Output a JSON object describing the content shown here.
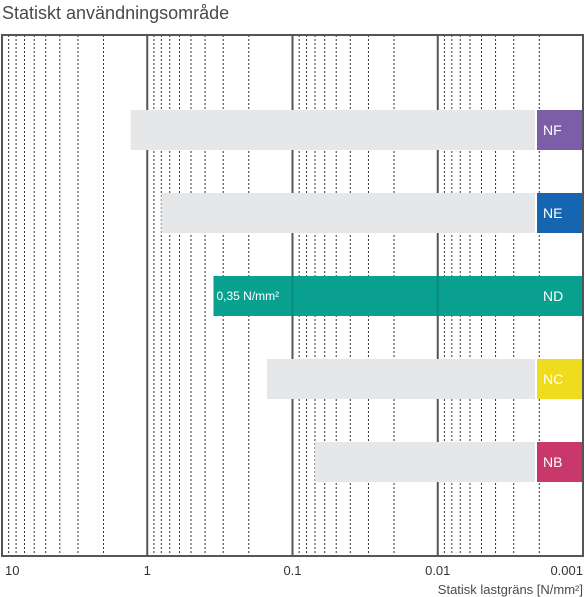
{
  "chart_data": {
    "type": "bar",
    "title": "Statiskt användningsområde",
    "xlabel": "Statisk lastgräns [N/mm²]",
    "x_scale": "log",
    "x_reversed": true,
    "xlim": [
      10,
      0.001
    ],
    "x_ticks": [
      {
        "value": 10,
        "label": "10"
      },
      {
        "value": 1,
        "label": "1"
      },
      {
        "value": 0.1,
        "label": "0.1"
      },
      {
        "value": 0.01,
        "label": "0.01"
      },
      {
        "value": 0.001,
        "label": "0.001"
      }
    ],
    "grid": true,
    "categories": [
      "NF",
      "NE",
      "ND",
      "NC",
      "NB"
    ],
    "ranges": [
      {
        "category": "NF",
        "from": 1.3,
        "to": 0.0018,
        "highlighted": false,
        "label_color": "#7b5ea7"
      },
      {
        "category": "NE",
        "from": 0.8,
        "to": 0.0018,
        "highlighted": false,
        "label_color": "#1565b0"
      },
      {
        "category": "ND",
        "from": 0.35,
        "to": 0.001,
        "highlighted": true,
        "label_color": "#0aa090"
      },
      {
        "category": "NC",
        "from": 0.15,
        "to": 0.0018,
        "highlighted": false,
        "label_color": "#f0dc1e"
      },
      {
        "category": "NB",
        "from": 0.07,
        "to": 0.0018,
        "highlighted": false,
        "label_color": "#c8386a"
      }
    ],
    "annotations": [
      {
        "category": "ND",
        "text": "0,35 N/mm²"
      }
    ],
    "colors": {
      "range": "#e6e7e9",
      "highlight": "#0aa090",
      "grid_major": "#555555",
      "grid_minor": "#333333"
    }
  }
}
